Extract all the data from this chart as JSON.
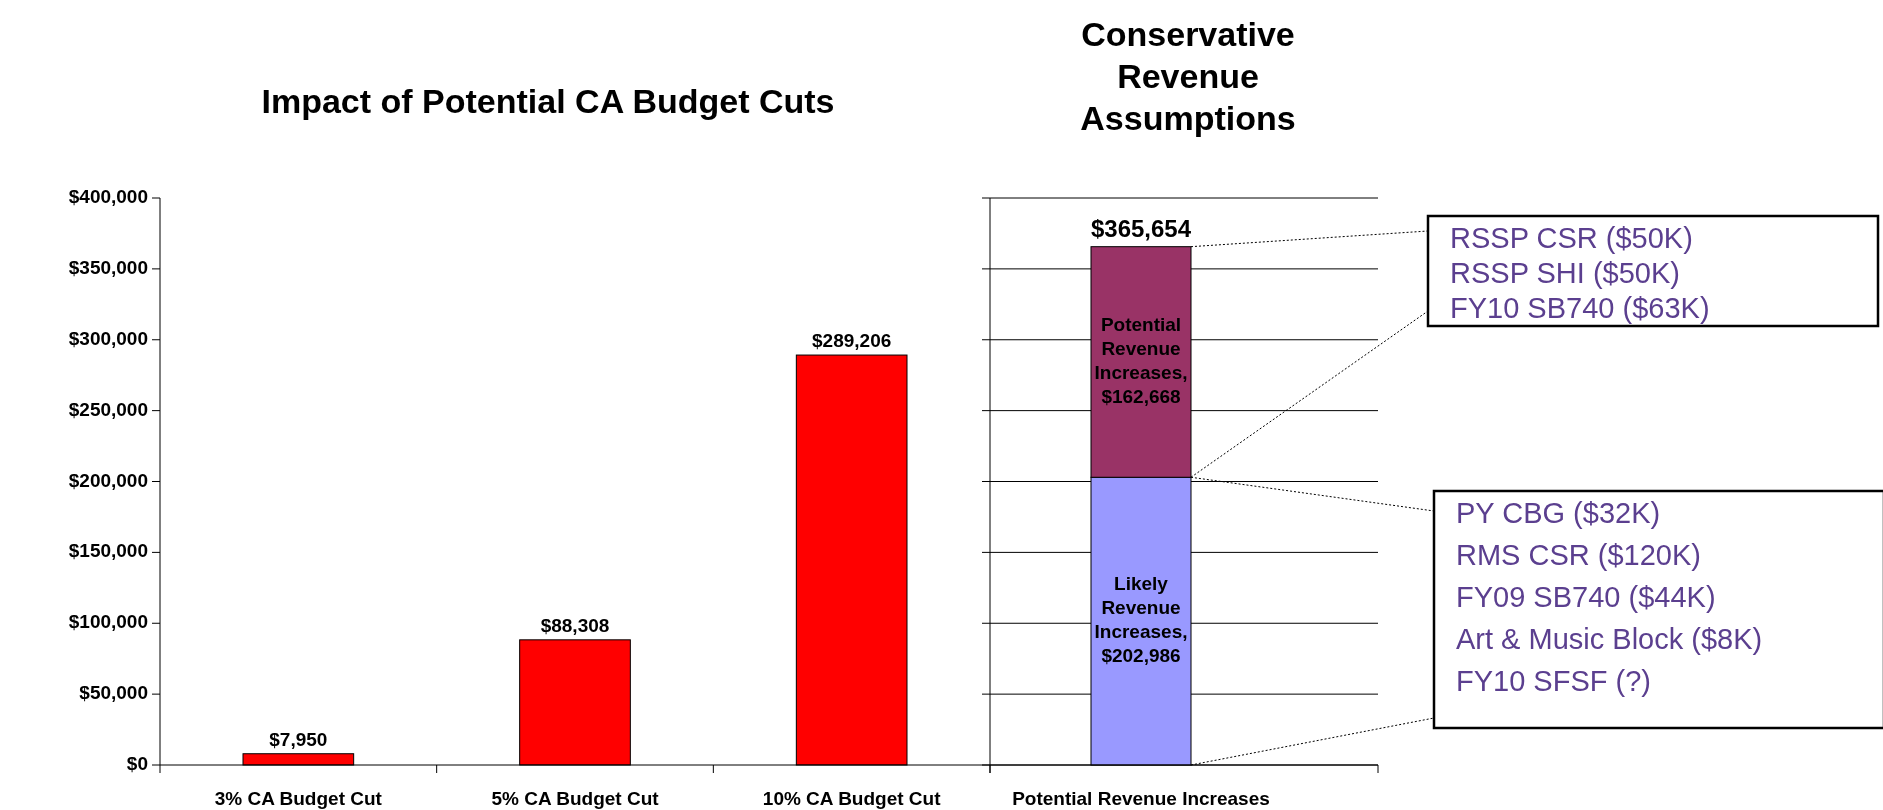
{
  "chart_data": [
    {
      "type": "bar",
      "title": "Impact of Potential CA Budget Cuts",
      "categories": [
        "3% CA Budget Cut",
        "5% CA Budget Cut",
        "10% CA Budget Cut"
      ],
      "series": [
        {
          "color": "#ff0000",
          "values": [
            7950,
            88308,
            289206
          ],
          "value_labels": [
            "$7,950",
            "$88,308",
            "$289,206"
          ]
        }
      ],
      "ylim": [
        0,
        400000
      ],
      "yticks": [
        {
          "value": 0,
          "label": "$0"
        },
        {
          "value": 50000,
          "label": "$50,000"
        },
        {
          "value": 100000,
          "label": "$100,000"
        },
        {
          "value": 150000,
          "label": "$150,000"
        },
        {
          "value": 200000,
          "label": "$200,000"
        },
        {
          "value": 250000,
          "label": "$250,000"
        },
        {
          "value": 300000,
          "label": "$300,000"
        },
        {
          "value": 350000,
          "label": "$350,000"
        },
        {
          "value": 400000,
          "label": "$400,000"
        }
      ]
    },
    {
      "type": "bar",
      "title": "Conservative Revenue Assumptions",
      "categories": [
        "Potential Revenue Increases"
      ],
      "stacked": true,
      "tick_labels": "x",
      "grid": "y",
      "series": [
        {
          "color": "#9999ff",
          "values": [
            202986
          ],
          "value_labels": [
            "Likely Revenue Increases, $202,986"
          ]
        },
        {
          "color": "#993366",
          "values": [
            162668
          ],
          "value_labels": [
            "Potential Revenue Increases, $162,668"
          ]
        }
      ],
      "totals": [
        "$365,654"
      ],
      "ylim": [
        0,
        400000
      ],
      "yticks": [
        {
          "value": 0,
          "label": null
        },
        {
          "value": 50000,
          "label": null
        },
        {
          "value": 100000,
          "label": null
        },
        {
          "value": 150000,
          "label": null
        },
        {
          "value": 200000,
          "label": null
        },
        {
          "value": 250000,
          "label": null
        },
        {
          "value": 300000,
          "label": null
        },
        {
          "value": 350000,
          "label": null
        },
        {
          "value": 400000,
          "label": null
        }
      ],
      "annotations": [
        "RSSP CSR ($50K)\nRSSP SHI ($50K)\nFY10 SB740 ($63K)",
        "PY CBG ($32K)\nRMS CSR ($120K)\nFY09 SB740 ($44K)\nArt & Music Block ($8K)\nFY10 SFSF (?)"
      ]
    }
  ]
}
